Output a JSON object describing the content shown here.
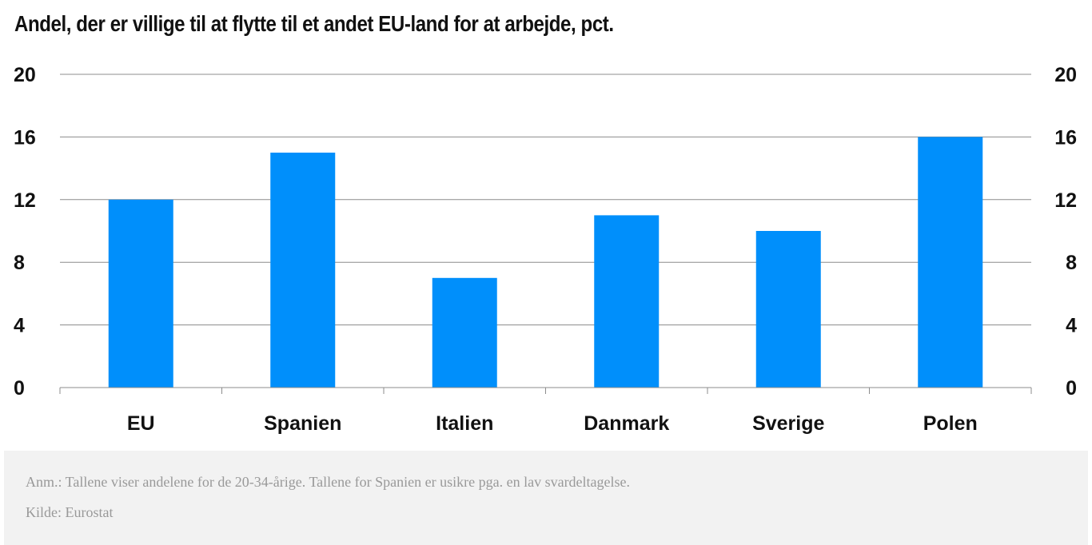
{
  "chart_data": {
    "type": "bar",
    "title": "Andel, der er villige til at flytte til et andet EU-land for at arbejde, pct.",
    "categories": [
      "EU",
      "Spanien",
      "Italien",
      "Danmark",
      "Sverige",
      "Polen"
    ],
    "values": [
      12,
      15,
      7,
      11,
      10,
      16
    ],
    "ylim": [
      0,
      20
    ],
    "yticks": [
      "0",
      "4",
      "8",
      "12",
      "16",
      "20"
    ],
    "y_axis_sides": "both",
    "grid": true,
    "bar_color": "#008ffb"
  },
  "notes": {
    "anm": "Anm.: Tallene viser andelene for de 20-34-årige. Tallene for Spanien er usikre pga. en lav svardeltagelse.",
    "kilde": "Kilde: Eurostat"
  }
}
